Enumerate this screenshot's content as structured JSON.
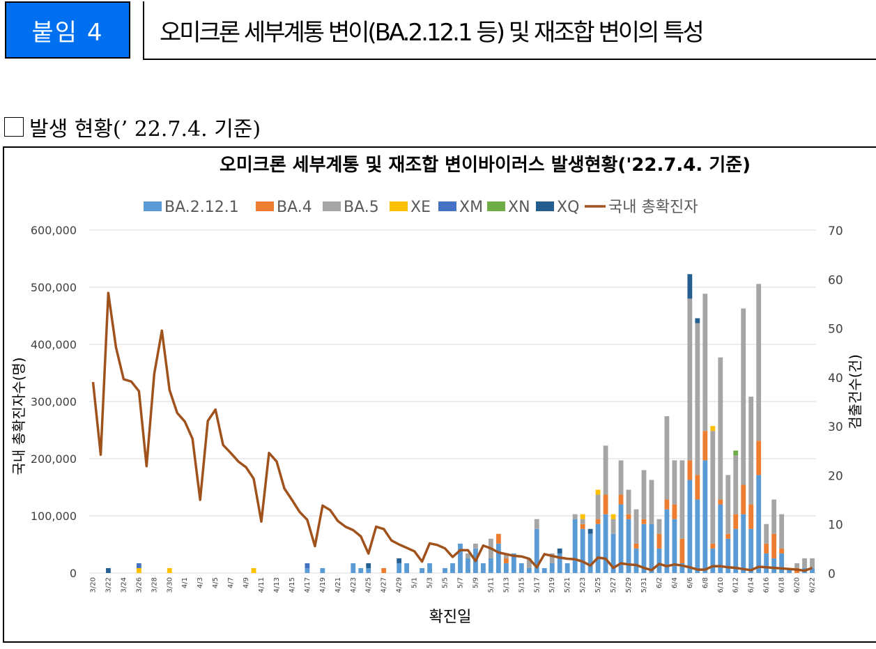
{
  "header": {
    "badge": "붙임 4",
    "title": "오미크론 세부계통 변이(BA.2.12.1 등) 및 재조합 변이의 특성"
  },
  "section": {
    "label": "발생 현황(’ 22.7.4. 기준)"
  },
  "colors": {
    "BA.2.12.1": "#5b9bd5",
    "BA.4": "#ed7d31",
    "BA.5": "#a5a5a5",
    "XE": "#ffc000",
    "XM": "#4472c4",
    "XN": "#70ad47",
    "XQ": "#255e91",
    "line": "#a0521c"
  },
  "chart_data": {
    "type": "bar",
    "title": "오미크론 세부계통 및 재조합 변이바이러스 발생현황('22.7.4. 기준)",
    "xlabel": "확진일",
    "ylabel_left": "국내 총확진자수(명)",
    "ylabel_right": "검출건수(건)",
    "ylim_left": [
      0,
      600000
    ],
    "ylim_right": [
      0,
      70
    ],
    "yticks_left": [
      "0",
      "100,000",
      "200,000",
      "300,000",
      "400,000",
      "500,000",
      "600,000"
    ],
    "yticks_right": [
      "0",
      "10",
      "20",
      "30",
      "40",
      "50",
      "60",
      "70"
    ],
    "legend": [
      "BA.2.12.1",
      "BA.4",
      "BA.5",
      "XE",
      "XM",
      "XN",
      "XQ",
      "국내 총확진자"
    ],
    "legend_position": "top",
    "dates": [
      "3/20",
      "3/21",
      "3/22",
      "3/23",
      "3/24",
      "3/25",
      "3/26",
      "3/27",
      "3/28",
      "3/29",
      "3/30",
      "3/31",
      "4/1",
      "4/2",
      "4/3",
      "4/4",
      "4/5",
      "4/6",
      "4/7",
      "4/8",
      "4/9",
      "4/10",
      "4/11",
      "4/12",
      "4/13",
      "4/14",
      "4/15",
      "4/16",
      "4/17",
      "4/18",
      "4/19",
      "4/20",
      "4/21",
      "4/22",
      "4/23",
      "4/24",
      "4/25",
      "4/26",
      "4/27",
      "4/28",
      "4/29",
      "4/30",
      "5/1",
      "5/2",
      "5/3",
      "5/4",
      "5/5",
      "5/6",
      "5/7",
      "5/8",
      "5/9",
      "5/10",
      "5/11",
      "5/12",
      "5/13",
      "5/14",
      "5/15",
      "5/16",
      "5/17",
      "5/18",
      "5/19",
      "5/20",
      "5/21",
      "5/22",
      "5/23",
      "5/24",
      "5/25",
      "5/26",
      "5/27",
      "5/28",
      "5/29",
      "5/30",
      "5/31",
      "6/1",
      "6/2",
      "6/3",
      "6/4",
      "6/5",
      "6/6",
      "6/7",
      "6/8",
      "6/9",
      "6/10",
      "6/11",
      "6/12",
      "6/13",
      "6/14",
      "6/15",
      "6/16",
      "6/17",
      "6/18",
      "6/19",
      "6/20",
      "6/21",
      "6/22"
    ],
    "tick_labels": [
      "3/20",
      "3/22",
      "3/24",
      "3/26",
      "3/28",
      "3/30",
      "4/1",
      "4/3",
      "4/5",
      "4/7",
      "4/9",
      "4/11",
      "4/13",
      "4/15",
      "4/17",
      "4/19",
      "4/21",
      "4/23",
      "4/25",
      "4/27",
      "4/29",
      "5/1",
      "5/3",
      "5/5",
      "5/7",
      "5/9",
      "5/11",
      "5/13",
      "5/15",
      "5/17",
      "5/19",
      "5/21",
      "5/23",
      "5/25",
      "5/27",
      "5/29",
      "5/31",
      "6/2",
      "6/4",
      "6/6",
      "6/8",
      "6/10",
      "6/12",
      "6/14",
      "6/16",
      "6/18",
      "6/20",
      "6/22"
    ],
    "series": [
      {
        "name": "BA.2.12.1",
        "axis": "right",
        "values": [
          0,
          0,
          0,
          0,
          0,
          0,
          0,
          0,
          0,
          0,
          0,
          0,
          0,
          0,
          0,
          0,
          0,
          0,
          0,
          0,
          0,
          0,
          0,
          0,
          0,
          0,
          0,
          0,
          1,
          0,
          1,
          0,
          0,
          0,
          2,
          1,
          1,
          0,
          0,
          0,
          2,
          2,
          0,
          1,
          2,
          0,
          1,
          2,
          6,
          3,
          5,
          2,
          3,
          6,
          2,
          4,
          2,
          1,
          9,
          1,
          2,
          4,
          2,
          11,
          9,
          8,
          10,
          12,
          8,
          14,
          11,
          5,
          10,
          10,
          5,
          13,
          11,
          2,
          19,
          15,
          23,
          5,
          14,
          7,
          9,
          12,
          9,
          20,
          4,
          3,
          4,
          1,
          0,
          1,
          1
        ]
      },
      {
        "name": "BA.4",
        "axis": "right",
        "values": [
          0,
          0,
          0,
          0,
          0,
          0,
          0,
          0,
          0,
          0,
          0,
          0,
          0,
          0,
          0,
          0,
          0,
          0,
          0,
          0,
          0,
          0,
          0,
          0,
          0,
          0,
          0,
          0,
          0,
          0,
          0,
          0,
          0,
          0,
          0,
          0,
          0,
          0,
          1,
          0,
          0,
          0,
          0,
          0,
          0,
          0,
          0,
          0,
          0,
          0,
          0,
          0,
          0,
          2,
          1,
          0,
          0,
          0,
          0,
          0,
          0,
          0,
          0,
          0,
          1,
          0,
          1,
          4,
          0,
          2,
          1,
          1,
          1,
          0,
          3,
          2,
          3,
          5,
          4,
          5,
          6,
          1,
          1,
          1,
          3,
          6,
          5,
          7,
          2,
          5,
          1,
          0,
          1,
          0,
          0
        ]
      },
      {
        "name": "BA.5",
        "axis": "right",
        "values": [
          0,
          0,
          0,
          0,
          0,
          0,
          0,
          0,
          0,
          0,
          0,
          0,
          0,
          0,
          0,
          0,
          0,
          0,
          0,
          0,
          0,
          0,
          0,
          0,
          0,
          0,
          0,
          0,
          0,
          0,
          0,
          0,
          0,
          0,
          0,
          0,
          0,
          0,
          0,
          0,
          0,
          0,
          0,
          0,
          0,
          0,
          0,
          0,
          0,
          1,
          1,
          0,
          4,
          0,
          1,
          0,
          0,
          2,
          2,
          0,
          2,
          0,
          0,
          1,
          1,
          0,
          5,
          10,
          3,
          7,
          5,
          7,
          10,
          9,
          3,
          17,
          9,
          16,
          33,
          31,
          28,
          23,
          29,
          12,
          12,
          36,
          22,
          32,
          4,
          7,
          7,
          0,
          1,
          2,
          2
        ]
      },
      {
        "name": "XE",
        "axis": "right",
        "values": [
          0,
          0,
          0,
          0,
          0,
          0,
          1,
          0,
          0,
          0,
          1,
          0,
          0,
          0,
          0,
          0,
          0,
          0,
          0,
          0,
          0,
          1,
          0,
          0,
          0,
          0,
          0,
          0,
          0,
          0,
          0,
          0,
          0,
          0,
          0,
          0,
          0,
          0,
          0,
          0,
          0,
          0,
          0,
          0,
          0,
          0,
          0,
          0,
          0,
          0,
          0,
          0,
          0,
          0,
          0,
          0,
          0,
          0,
          0,
          0,
          0,
          0,
          0,
          0,
          1,
          0,
          1,
          0,
          1,
          0,
          0,
          0,
          0,
          0,
          0,
          0,
          0,
          0,
          0,
          0,
          0,
          1,
          0,
          0,
          0,
          0,
          0,
          0,
          0,
          0,
          0,
          0,
          0,
          0,
          0
        ]
      },
      {
        "name": "XM",
        "axis": "right",
        "values": [
          0,
          0,
          0,
          0,
          0,
          0,
          1,
          0,
          0,
          0,
          0,
          0,
          0,
          0,
          0,
          0,
          0,
          0,
          0,
          0,
          0,
          0,
          0,
          0,
          0,
          0,
          0,
          0,
          1,
          0,
          0,
          0,
          0,
          0,
          0,
          0,
          0,
          0,
          0,
          0,
          0,
          0,
          0,
          0,
          0,
          0,
          0,
          0,
          0,
          0,
          0,
          0,
          0,
          0,
          0,
          0,
          0,
          0,
          0,
          0,
          0,
          0,
          0,
          0,
          0,
          0,
          0,
          0,
          0,
          0,
          0,
          0,
          0,
          0,
          0,
          0,
          0,
          0,
          0,
          0,
          0,
          0,
          0,
          0,
          0,
          0,
          0,
          0,
          0,
          0,
          0,
          0,
          0,
          0,
          0
        ]
      },
      {
        "name": "XN",
        "axis": "right",
        "values": [
          0,
          0,
          0,
          0,
          0,
          0,
          0,
          0,
          0,
          0,
          0,
          0,
          0,
          0,
          0,
          0,
          0,
          0,
          0,
          0,
          0,
          0,
          0,
          0,
          0,
          0,
          0,
          0,
          0,
          0,
          0,
          0,
          0,
          0,
          0,
          0,
          0,
          0,
          0,
          0,
          0,
          0,
          0,
          0,
          0,
          0,
          0,
          0,
          0,
          0,
          0,
          0,
          0,
          0,
          0,
          0,
          0,
          0,
          0,
          0,
          0,
          0,
          0,
          0,
          0,
          0,
          0,
          0,
          0,
          0,
          0,
          0,
          0,
          0,
          0,
          0,
          0,
          0,
          0,
          0,
          0,
          0,
          0,
          0,
          1,
          0,
          0,
          0,
          0,
          0,
          0,
          0,
          0,
          0,
          0
        ]
      },
      {
        "name": "XQ",
        "axis": "right",
        "values": [
          0,
          0,
          1,
          0,
          0,
          0,
          0,
          0,
          0,
          0,
          0,
          0,
          0,
          0,
          0,
          0,
          0,
          0,
          0,
          0,
          0,
          0,
          0,
          0,
          0,
          0,
          0,
          0,
          0,
          0,
          0,
          0,
          0,
          0,
          0,
          0,
          1,
          0,
          0,
          0,
          1,
          0,
          0,
          0,
          0,
          0,
          0,
          0,
          0,
          0,
          0,
          0,
          0,
          0,
          0,
          0,
          0,
          0,
          0,
          0,
          0,
          1,
          0,
          0,
          0,
          1,
          0,
          0,
          0,
          0,
          0,
          0,
          0,
          0,
          0,
          0,
          0,
          0,
          5,
          1,
          0,
          0,
          0,
          0,
          0,
          0,
          0,
          0,
          0,
          0,
          0,
          0,
          0,
          0,
          0
        ]
      },
      {
        "name": "국내 총확진자",
        "axis": "left",
        "type": "line",
        "values": [
          334000,
          207000,
          490000,
          395000,
          339000,
          335000,
          318000,
          187000,
          348000,
          424000,
          320000,
          280000,
          265000,
          235000,
          128000,
          266000,
          286000,
          224000,
          210000,
          195000,
          185000,
          165000,
          90000,
          210000,
          195000,
          148000,
          128000,
          107000,
          93000,
          47000,
          118000,
          110000,
          91000,
          81000,
          75000,
          64000,
          34000,
          81000,
          77000,
          57000,
          50000,
          44000,
          38000,
          20000,
          52000,
          49000,
          43000,
          28000,
          40000,
          40000,
          21000,
          48000,
          43000,
          36000,
          33000,
          30000,
          29000,
          25000,
          10000,
          33000,
          30000,
          27000,
          25000,
          24000,
          20000,
          13000,
          27000,
          25000,
          9000,
          17000,
          15000,
          14000,
          9000,
          5000,
          16000,
          12000,
          15000,
          13000,
          10000,
          6000,
          6000,
          12000,
          12000,
          10000,
          9000,
          7000,
          5000,
          11000,
          10000,
          9000,
          8000,
          7000,
          6000,
          4000,
          9000
        ]
      }
    ]
  }
}
